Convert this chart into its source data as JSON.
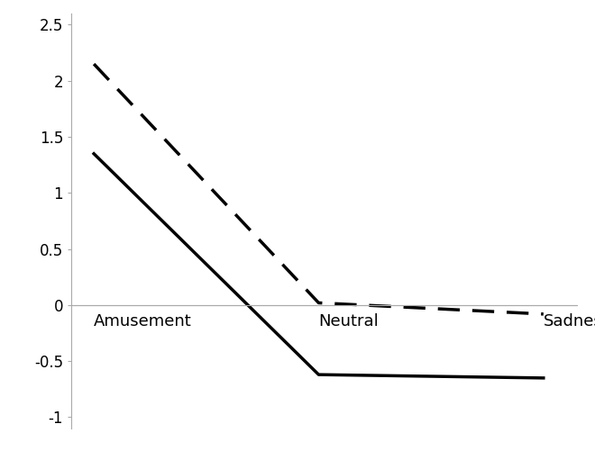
{
  "x_labels": [
    "Amusement",
    "Neutral",
    "Sadness"
  ],
  "x_positions": [
    0,
    1,
    2
  ],
  "dashed_line": [
    2.15,
    0.02,
    -0.08
  ],
  "solid_line": [
    1.35,
    -0.62,
    -0.65
  ],
  "ylim": [
    -1.1,
    2.6
  ],
  "yticks": [
    -1.0,
    -0.5,
    0.0,
    0.5,
    1.0,
    1.5,
    2.0,
    2.5
  ],
  "line_color": "#000000",
  "line_width": 2.5,
  "dashed_linewidth": 2.5,
  "background_color": "#ffffff",
  "figsize": [
    6.6,
    5.01
  ],
  "dpi": 100,
  "xlim": [
    -0.1,
    2.15
  ],
  "xlabel_fontsize": 13,
  "ylabel_fontsize": 12
}
